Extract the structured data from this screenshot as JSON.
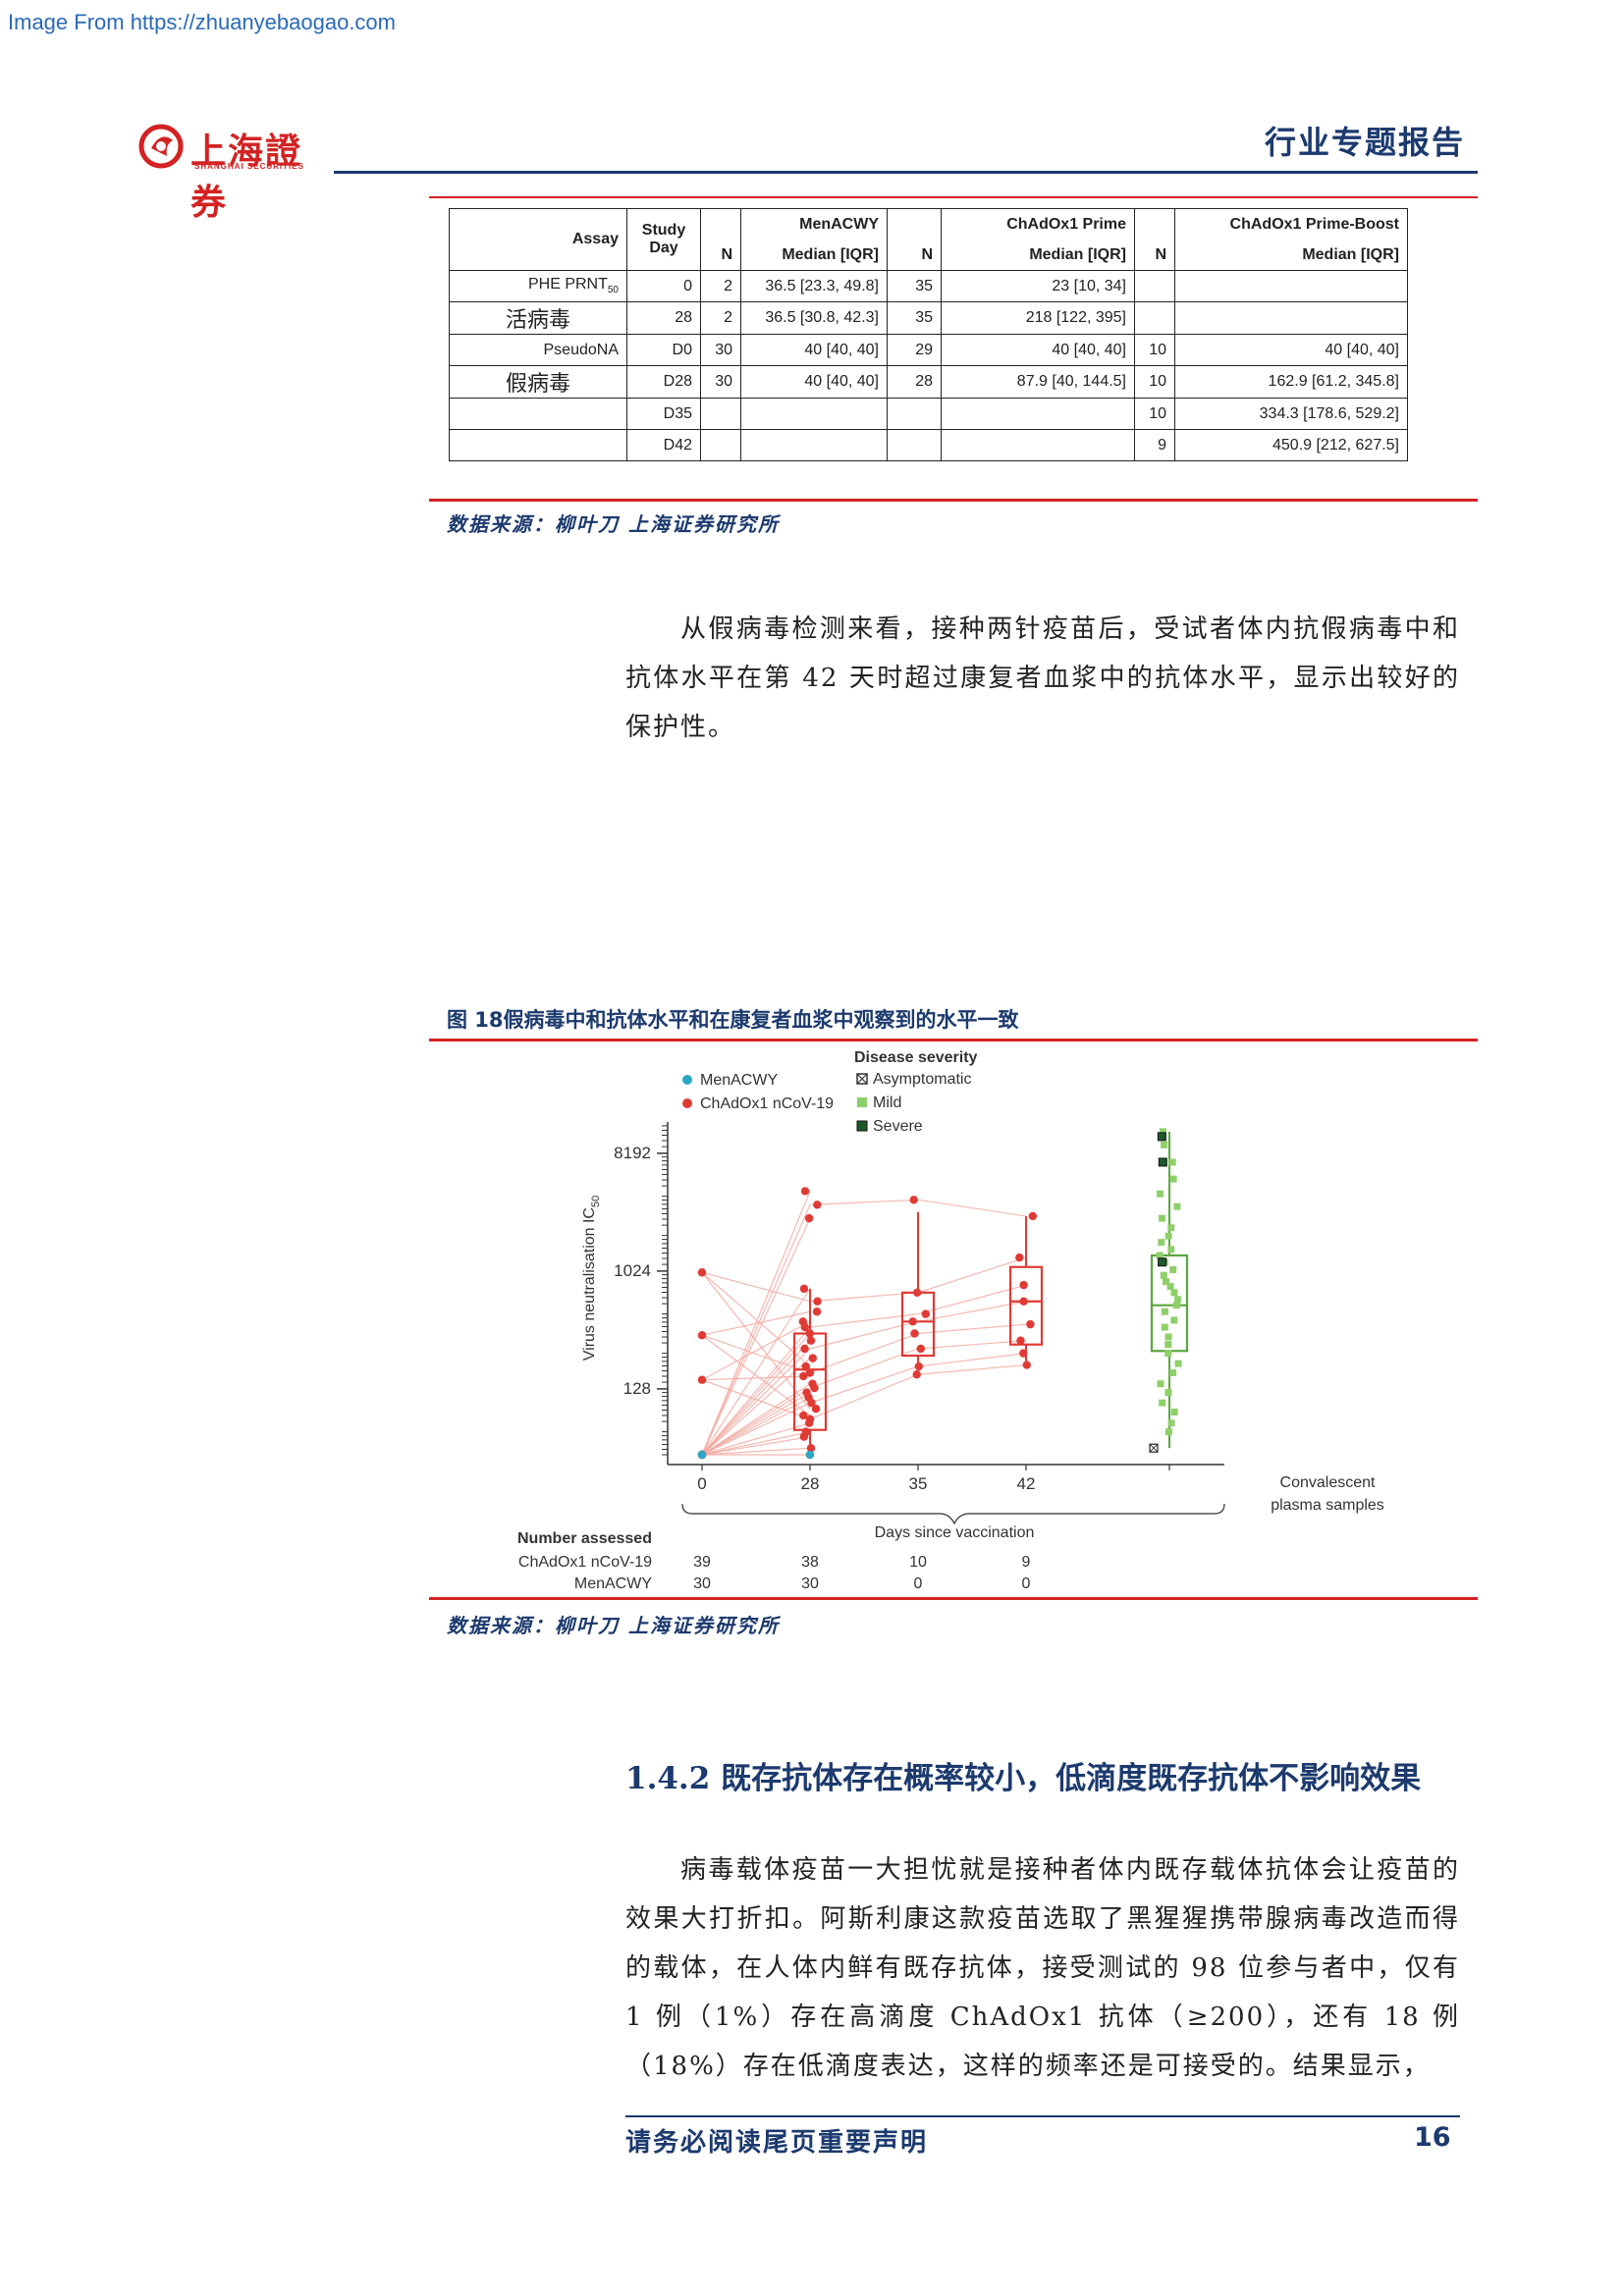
{
  "watermark": "Image From https://zhuanyebaogao.com",
  "header": {
    "logo_cn": "上海證券",
    "logo_en": "SHANGHAI SECURITIES",
    "title": "行业专题报告"
  },
  "table": {
    "headers": {
      "assay": "Assay",
      "study_day": "Study Day",
      "menacwy": "MenACWY",
      "chadox_prime": "ChAdOx1 Prime",
      "chadox_boost": "ChAdOx1 Prime-Boost",
      "n": "N",
      "median": "Median [IQR]"
    },
    "assay_labels": {
      "prnt_prefix": "PHE PRNT",
      "prnt_sub": "50",
      "prnt_cn": "活病毒",
      "pseudo": "PseudoNA",
      "pseudo_cn": "假病毒"
    },
    "rows": [
      {
        "day": "0",
        "m_n": "2",
        "m_med": "36.5 [23.3, 49.8]",
        "p_n": "35",
        "p_med": "23 [10, 34]",
        "b_n": "",
        "b_med": ""
      },
      {
        "day": "28",
        "m_n": "2",
        "m_med": "36.5 [30.8, 42.3]",
        "p_n": "35",
        "p_med": "218 [122, 395]",
        "b_n": "",
        "b_med": ""
      },
      {
        "day": "D0",
        "m_n": "30",
        "m_med": "40 [40, 40]",
        "p_n": "29",
        "p_med": "40 [40, 40]",
        "b_n": "10",
        "b_med": "40 [40, 40]"
      },
      {
        "day": "D28",
        "m_n": "30",
        "m_med": "40 [40, 40]",
        "p_n": "28",
        "p_med": "87.9 [40, 144.5]",
        "b_n": "10",
        "b_med": "162.9 [61.2, 345.8]"
      },
      {
        "day": "D35",
        "m_n": "",
        "m_med": "",
        "p_n": "",
        "p_med": "",
        "b_n": "10",
        "b_med": "334.3 [178.6, 529.2]"
      },
      {
        "day": "D42",
        "m_n": "",
        "m_med": "",
        "p_n": "",
        "p_med": "",
        "b_n": "9",
        "b_med": "450.9 [212, 627.5]"
      }
    ]
  },
  "source_label": "数据来源：柳叶刀 上海证券研究所",
  "paragraph1": "从假病毒检测来看，接种两针疫苗后，受试者体内抗假病毒中和抗体水平在第 42 天时超过康复者血浆中的抗体水平，显示出较好的保护性。",
  "figure": {
    "title": "图 18假病毒中和抗体水平和在康复者血浆中观察到的水平一致",
    "ylabel_main": "Virus neutralisation IC",
    "ylabel_sub": "50",
    "xlabel": "Days since vaccination",
    "convalescent_label_1": "Convalescent",
    "convalescent_label_2": "plasma samples",
    "legend": {
      "menacwy": "MenACWY",
      "chadox": "ChAdOx1 nCoV-19",
      "severity_title": "Disease severity",
      "asymptomatic": "Asymptomatic",
      "mild": "Mild",
      "severe": "Severe"
    },
    "number_assessed": {
      "title": "Number assessed",
      "row1_label": "ChAdOx1 nCoV-19",
      "row1": [
        "39",
        "38",
        "10",
        "9"
      ],
      "row2_label": "MenACWY",
      "row2": [
        "30",
        "30",
        "0",
        "0"
      ]
    },
    "colors": {
      "chadox": "#e03a35",
      "menacwy": "#2aa7c4",
      "mild": "#8fcf6a",
      "box_green": "#5aa83b",
      "severe": "#1d5a2a"
    }
  },
  "chart_data": {
    "type": "scatter",
    "xlabel": "Days since vaccination",
    "ylabel": "Virus neutralisation IC50",
    "yscale": "log2",
    "y_ticks": [
      128,
      1024,
      8192
    ],
    "x_ticks": [
      "0",
      "28",
      "35",
      "42",
      "Convalescent plasma samples"
    ],
    "series": [
      {
        "name": "ChAdOx1 nCoV-19",
        "x": "0",
        "values": [
          40,
          40,
          40,
          40,
          40,
          150,
          330,
          1000
        ]
      },
      {
        "name": "ChAdOx1 nCoV-19",
        "x": "28",
        "values": [
          40,
          45,
          55,
          60,
          70,
          75,
          80,
          90,
          100,
          110,
          120,
          130,
          140,
          160,
          170,
          190,
          220,
          260,
          300,
          340,
          380,
          420,
          500,
          600,
          750,
          2600,
          3300,
          4200
        ]
      },
      {
        "name": "ChAdOx1 nCoV-19",
        "x": "35",
        "values": [
          165,
          190,
          260,
          340,
          420,
          480,
          700,
          3600
        ]
      },
      {
        "name": "ChAdOx1 nCoV-19",
        "x": "42",
        "values": [
          195,
          240,
          300,
          400,
          600,
          800,
          1300,
          2700
        ]
      },
      {
        "name": "MenACWY",
        "x": "0",
        "values": [
          40
        ]
      },
      {
        "name": "MenACWY",
        "x": "28",
        "values": [
          40
        ]
      },
      {
        "name": "Mild",
        "x": "Convalescent plasma samples",
        "values": [
          60,
          70,
          85,
          100,
          120,
          140,
          170,
          200,
          240,
          280,
          320,
          380,
          430,
          500,
          560,
          620,
          700,
          780,
          850,
          950,
          1050,
          1200,
          1350,
          1500,
          1700,
          1900,
          2200,
          2600,
          3200,
          4000,
          5200,
          7000,
          9500,
          12000
        ]
      },
      {
        "name": "Severe",
        "x": "Convalescent plasma samples",
        "values": [
          1200,
          7000,
          11000
        ]
      },
      {
        "name": "Asymptomatic",
        "x": "Convalescent plasma samples",
        "values": [
          45
        ]
      }
    ],
    "boxes": [
      {
        "x": "28",
        "q1": 62,
        "median": 180,
        "q3": 340,
        "whisker_low": 40,
        "whisker_high": 750
      },
      {
        "x": "35",
        "q1": 230,
        "median": 420,
        "q3": 700,
        "whisker_low": 165,
        "whisker_high": 2900
      },
      {
        "x": "42",
        "q1": 280,
        "median": 600,
        "q3": 1100,
        "whisker_low": 195,
        "whisker_high": 2700
      },
      {
        "x": "Convalescent plasma samples",
        "q1": 250,
        "median": 560,
        "q3": 1350,
        "whisker_low": 45,
        "whisker_high": 12000
      }
    ]
  },
  "source_label_2": "数据来源：柳叶刀 上海证券研究所",
  "section_title": "1.4.2 既存抗体存在概率较小，低滴度既存抗体不影响效果",
  "paragraph2": "病毒载体疫苗一大担忧就是接种者体内既存载体抗体会让疫苗的效果大打折扣。阿斯利康这款疫苗选取了黑猩猩携带腺病毒改造而得的载体，在人体内鲜有既存抗体，接受测试的 98 位参与者中，仅有 1 例（1%）存在高滴度 ChAdOx1 抗体（≥200），还有 18 例（18%）存在低滴度表达，这样的频率还是可接受的。结果显示，",
  "footer": {
    "notice": "请务必阅读尾页重要声明",
    "page": "16"
  }
}
